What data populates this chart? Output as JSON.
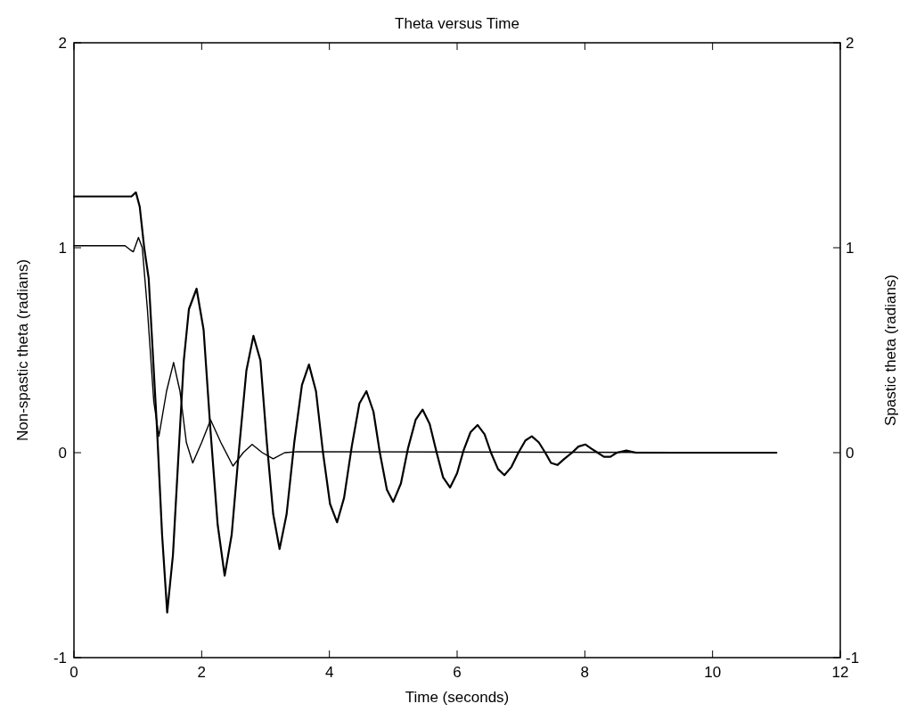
{
  "chart_data": {
    "type": "line",
    "title": "Theta versus Time",
    "xlabel": "Time (seconds)",
    "ylabel": "Non-spastic theta (radians)",
    "y2label": "Spastic theta (radians)",
    "xlim": [
      0,
      12
    ],
    "xticks": [
      0,
      2,
      4,
      6,
      8,
      10,
      12
    ],
    "ylim": [
      -1,
      2
    ],
    "yticks": [
      -1,
      0,
      1,
      2
    ],
    "y2lim": [
      -1,
      2
    ],
    "y2ticks": [
      -1,
      0,
      1,
      2
    ],
    "grid": false,
    "marker": "none",
    "line_style": "solid",
    "series": [
      {
        "color": "#000000",
        "axis": "y",
        "x": [
          0,
          0.9,
          0.97,
          1.03,
          1.1,
          1.17,
          1.25,
          1.3,
          1.38,
          1.46,
          1.55,
          1.63,
          1.72,
          1.8,
          1.92,
          2.03,
          2.14,
          2.25,
          2.36,
          2.47,
          2.58,
          2.7,
          2.81,
          2.92,
          3.02,
          3.12,
          3.22,
          3.33,
          3.45,
          3.57,
          3.68,
          3.79,
          3.9,
          4.01,
          4.12,
          4.23,
          4.35,
          4.47,
          4.58,
          4.69,
          4.79,
          4.9,
          5.0,
          5.12,
          5.23,
          5.35,
          5.46,
          5.57,
          5.68,
          5.78,
          5.89,
          6.0,
          6.1,
          6.21,
          6.32,
          6.43,
          6.53,
          6.64,
          6.74,
          6.85,
          6.96,
          7.07,
          7.17,
          7.28,
          7.38,
          7.47,
          7.57,
          7.68,
          7.8,
          7.9,
          8.01,
          8.1,
          8.2,
          8.3,
          8.4,
          8.5,
          8.65,
          8.8,
          11
        ],
        "values": [
          1.25,
          1.25,
          1.27,
          1.2,
          1.0,
          0.85,
          0.4,
          0.12,
          -0.4,
          -0.78,
          -0.5,
          -0.05,
          0.45,
          0.7,
          0.8,
          0.6,
          0.1,
          -0.35,
          -0.6,
          -0.4,
          0.0,
          0.4,
          0.57,
          0.45,
          0.05,
          -0.3,
          -0.47,
          -0.3,
          0.05,
          0.33,
          0.43,
          0.3,
          0.0,
          -0.25,
          -0.34,
          -0.22,
          0.03,
          0.24,
          0.3,
          0.2,
          0.0,
          -0.18,
          -0.24,
          -0.15,
          0.02,
          0.16,
          0.21,
          0.14,
          0.0,
          -0.12,
          -0.17,
          -0.1,
          0.01,
          0.1,
          0.135,
          0.09,
          0.0,
          -0.08,
          -0.11,
          -0.07,
          0.0,
          0.06,
          0.08,
          0.05,
          0.0,
          -0.05,
          -0.06,
          -0.03,
          0.0,
          0.03,
          0.04,
          0.02,
          0.0,
          -0.02,
          -0.02,
          0.0,
          0.01,
          0.0,
          0.0
        ]
      },
      {
        "color": "#000000",
        "axis": "y2",
        "x": [
          0,
          0.8,
          0.88,
          0.93,
          1.01,
          1.07,
          1.15,
          1.25,
          1.33,
          1.45,
          1.56,
          1.66,
          1.76,
          1.86,
          2.0,
          2.14,
          2.3,
          2.49,
          2.65,
          2.79,
          2.95,
          3.12,
          3.3,
          3.5,
          11
        ],
        "values": [
          1.01,
          1.01,
          0.99,
          0.98,
          1.05,
          1.0,
          0.7,
          0.25,
          0.08,
          0.3,
          0.44,
          0.3,
          0.05,
          -0.05,
          0.05,
          0.16,
          0.05,
          -0.065,
          0.0,
          0.04,
          0.0,
          -0.03,
          0.0,
          0.005,
          0.0
        ]
      }
    ]
  }
}
